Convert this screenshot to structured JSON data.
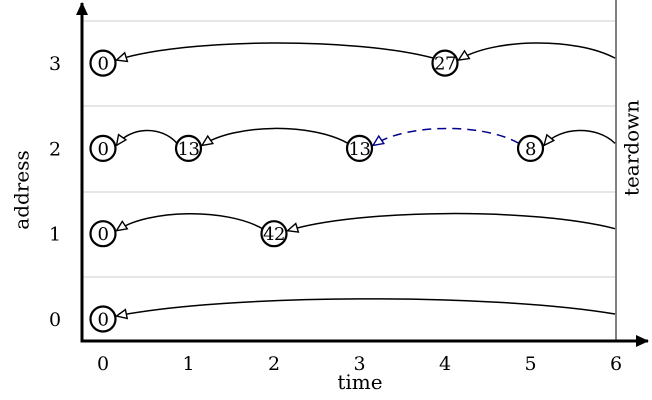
{
  "diagram": {
    "x_axis_label": "time",
    "y_axis_label": "address",
    "x_ticks": [
      "0",
      "1",
      "2",
      "3",
      "4",
      "5",
      "6"
    ],
    "y_ticks": [
      "0",
      "1",
      "2",
      "3"
    ],
    "teardown_label": "teardown",
    "nodes": [
      {
        "address": 0,
        "time": 0,
        "value": "0"
      },
      {
        "address": 1,
        "time": 0,
        "value": "0"
      },
      {
        "address": 1,
        "time": 2,
        "value": "42"
      },
      {
        "address": 2,
        "time": 0,
        "value": "0"
      },
      {
        "address": 2,
        "time": 1,
        "value": "13"
      },
      {
        "address": 2,
        "time": 3,
        "value": "13"
      },
      {
        "address": 2,
        "time": 5,
        "value": "8"
      },
      {
        "address": 3,
        "time": 0,
        "value": "0"
      },
      {
        "address": 3,
        "time": 4,
        "value": "27"
      }
    ],
    "edges": [
      {
        "address": 0,
        "from_time": 6,
        "to_time": 0,
        "style": "solid"
      },
      {
        "address": 1,
        "from_time": 6,
        "to_time": 2,
        "style": "solid"
      },
      {
        "address": 1,
        "from_time": 2,
        "to_time": 0,
        "style": "solid"
      },
      {
        "address": 2,
        "from_time": 6,
        "to_time": 5,
        "style": "solid"
      },
      {
        "address": 2,
        "from_time": 5,
        "to_time": 3,
        "style": "dashed"
      },
      {
        "address": 2,
        "from_time": 3,
        "to_time": 1,
        "style": "solid"
      },
      {
        "address": 2,
        "from_time": 1,
        "to_time": 0,
        "style": "solid"
      },
      {
        "address": 3,
        "from_time": 6,
        "to_time": 4,
        "style": "solid"
      },
      {
        "address": 3,
        "from_time": 4,
        "to_time": 0,
        "style": "solid"
      }
    ],
    "colors": {
      "ink": "#000000",
      "grid": "#cccccc",
      "dashed_edge": "#00008b"
    }
  }
}
